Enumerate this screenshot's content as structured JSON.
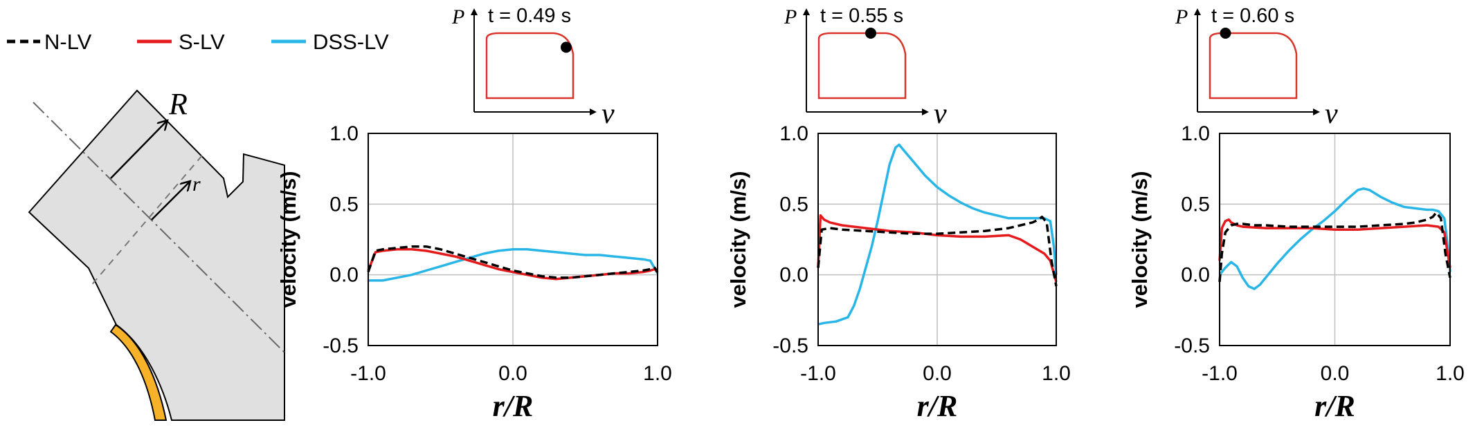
{
  "colors": {
    "N-LV": "#000000",
    "S-LV": "#e41a1c",
    "DSS-LV": "#29b6e6",
    "grid": "#bfbfbf",
    "tissue": "#e0e0e0",
    "leaflet": "#f7b22a",
    "loop": "#d9332b"
  },
  "legend": [
    {
      "label": "N-LV",
      "color": "#000000",
      "dash": true
    },
    {
      "label": "S-LV",
      "color": "#e41a1c",
      "dash": false
    },
    {
      "label": "DSS-LV",
      "color": "#29b6e6",
      "dash": false
    }
  ],
  "schematic": {
    "outer_label": "R",
    "inner_label": "r"
  },
  "pv_axes": {
    "ylabel": "P",
    "xlabel": "v"
  },
  "chart_data": [
    {
      "type": "line",
      "title": "t = 0.49 s",
      "time_label": "t = 0.49 s",
      "loop_marker": 0.92,
      "xlabel": "r/R",
      "ylabel": "velocity (m/s)",
      "xlim": [
        -1,
        1
      ],
      "ylim": [
        -0.5,
        1
      ],
      "xticks": [
        "-1.0",
        "0.0",
        "1.0"
      ],
      "yticks": [
        "1.0",
        "0.5",
        "0.0",
        "-0.5"
      ],
      "grid": true,
      "series": [
        {
          "name": "N-LV",
          "x": [
            -1,
            -0.95,
            -0.9,
            -0.8,
            -0.7,
            -0.6,
            -0.5,
            -0.4,
            -0.3,
            -0.2,
            -0.1,
            0,
            0.1,
            0.2,
            0.3,
            0.4,
            0.5,
            0.6,
            0.7,
            0.8,
            0.9,
            0.95,
            0.98,
            1
          ],
          "values": [
            0.02,
            0.17,
            0.18,
            0.19,
            0.2,
            0.2,
            0.18,
            0.15,
            0.12,
            0.09,
            0.06,
            0.03,
            0.01,
            -0.01,
            -0.02,
            -0.02,
            -0.01,
            0,
            0.01,
            0.02,
            0.03,
            0.04,
            0.05,
            0.02
          ]
        },
        {
          "name": "S-LV",
          "x": [
            -1,
            -0.95,
            -0.9,
            -0.8,
            -0.7,
            -0.6,
            -0.5,
            -0.4,
            -0.3,
            -0.2,
            -0.1,
            0,
            0.1,
            0.2,
            0.3,
            0.4,
            0.5,
            0.6,
            0.7,
            0.8,
            0.9,
            0.95,
            0.98,
            1
          ],
          "values": [
            0.03,
            0.16,
            0.17,
            0.18,
            0.18,
            0.17,
            0.15,
            0.13,
            0.1,
            0.07,
            0.04,
            0.02,
            0,
            -0.02,
            -0.03,
            -0.02,
            -0.01,
            0,
            0.01,
            0.01,
            0.02,
            0.03,
            0.04,
            0.02
          ]
        },
        {
          "name": "DSS-LV",
          "x": [
            -1,
            -0.9,
            -0.8,
            -0.7,
            -0.6,
            -0.5,
            -0.4,
            -0.3,
            -0.2,
            -0.1,
            0,
            0.1,
            0.2,
            0.3,
            0.4,
            0.5,
            0.6,
            0.7,
            0.8,
            0.9,
            0.95,
            1
          ],
          "values": [
            -0.04,
            -0.04,
            -0.02,
            0,
            0.03,
            0.06,
            0.09,
            0.12,
            0.15,
            0.17,
            0.18,
            0.18,
            0.17,
            0.16,
            0.15,
            0.14,
            0.14,
            0.13,
            0.12,
            0.11,
            0.1,
            0.01
          ]
        }
      ]
    },
    {
      "type": "line",
      "title": "t = 0.55 s",
      "time_label": "t = 0.55 s",
      "loop_marker": 0.6,
      "xlabel": "r/R",
      "ylabel": "velocity (m/s)",
      "xlim": [
        -1,
        1
      ],
      "ylim": [
        -0.5,
        1
      ],
      "xticks": [
        "-1.0",
        "0.0",
        "1.0"
      ],
      "yticks": [
        "1.0",
        "0.5",
        "0.0",
        "-0.5"
      ],
      "grid": true,
      "series": [
        {
          "name": "N-LV",
          "x": [
            -1,
            -0.97,
            -0.9,
            -0.8,
            -0.6,
            -0.4,
            -0.2,
            0,
            0.2,
            0.4,
            0.6,
            0.7,
            0.8,
            0.85,
            0.88,
            0.92,
            0.96,
            1
          ],
          "values": [
            0.05,
            0.32,
            0.33,
            0.32,
            0.31,
            0.3,
            0.29,
            0.29,
            0.3,
            0.31,
            0.33,
            0.35,
            0.37,
            0.39,
            0.41,
            0.37,
            0.1,
            -0.08
          ]
        },
        {
          "name": "S-LV",
          "x": [
            -1,
            -0.98,
            -0.95,
            -0.9,
            -0.8,
            -0.6,
            -0.4,
            -0.2,
            0,
            0.2,
            0.4,
            0.6,
            0.7,
            0.8,
            0.9,
            0.95,
            1
          ],
          "values": [
            0.05,
            0.42,
            0.39,
            0.37,
            0.35,
            0.33,
            0.31,
            0.3,
            0.28,
            0.27,
            0.27,
            0.28,
            0.25,
            0.2,
            0.15,
            0.1,
            -0.05
          ]
        },
        {
          "name": "DSS-LV",
          "x": [
            -1,
            -0.95,
            -0.85,
            -0.75,
            -0.7,
            -0.65,
            -0.6,
            -0.55,
            -0.5,
            -0.45,
            -0.4,
            -0.35,
            -0.32,
            -0.28,
            -0.2,
            -0.1,
            0,
            0.1,
            0.2,
            0.3,
            0.4,
            0.5,
            0.6,
            0.7,
            0.8,
            0.85,
            0.9,
            0.95,
            0.98,
            1
          ],
          "values": [
            -0.35,
            -0.34,
            -0.33,
            -0.3,
            -0.22,
            -0.1,
            0.05,
            0.2,
            0.38,
            0.58,
            0.78,
            0.9,
            0.92,
            0.88,
            0.8,
            0.7,
            0.62,
            0.56,
            0.51,
            0.47,
            0.44,
            0.42,
            0.4,
            0.4,
            0.4,
            0.4,
            0.4,
            0.38,
            0.2,
            0
          ]
        }
      ]
    },
    {
      "type": "line",
      "title": "t = 0.60 s",
      "time_label": "t = 0.60 s",
      "loop_marker": 0.18,
      "xlabel": "r/R",
      "ylabel": "velocity (m/s)",
      "xlim": [
        -1,
        1
      ],
      "ylim": [
        -0.5,
        1
      ],
      "xticks": [
        "-1.0",
        "0.0",
        "1.0"
      ],
      "yticks": [
        "1.0",
        "0.5",
        "0.0",
        "-0.5"
      ],
      "grid": true,
      "series": [
        {
          "name": "N-LV",
          "x": [
            -1,
            -0.98,
            -0.95,
            -0.9,
            -0.85,
            -0.8,
            -0.7,
            -0.6,
            -0.4,
            -0.2,
            0,
            0.2,
            0.4,
            0.6,
            0.7,
            0.8,
            0.85,
            0.88,
            0.92,
            0.96,
            1
          ],
          "values": [
            -0.05,
            0.15,
            0.3,
            0.35,
            0.36,
            0.36,
            0.35,
            0.35,
            0.34,
            0.34,
            0.34,
            0.34,
            0.35,
            0.36,
            0.37,
            0.39,
            0.41,
            0.44,
            0.4,
            0.15,
            -0.02
          ]
        },
        {
          "name": "S-LV",
          "x": [
            -1,
            -0.98,
            -0.95,
            -0.92,
            -0.9,
            -0.85,
            -0.8,
            -0.6,
            -0.4,
            -0.2,
            0,
            0.2,
            0.4,
            0.6,
            0.8,
            0.9,
            0.95,
            1
          ],
          "values": [
            0.1,
            0.33,
            0.38,
            0.39,
            0.37,
            0.35,
            0.34,
            0.33,
            0.33,
            0.33,
            0.32,
            0.32,
            0.33,
            0.34,
            0.35,
            0.34,
            0.3,
            0.05
          ]
        },
        {
          "name": "DSS-LV",
          "x": [
            -1,
            -0.95,
            -0.9,
            -0.85,
            -0.8,
            -0.75,
            -0.7,
            -0.65,
            -0.6,
            -0.5,
            -0.4,
            -0.3,
            -0.2,
            -0.1,
            0,
            0.1,
            0.2,
            0.25,
            0.3,
            0.4,
            0.5,
            0.6,
            0.7,
            0.8,
            0.85,
            0.9,
            0.95,
            0.98,
            1
          ],
          "values": [
            0,
            0.05,
            0.09,
            0.06,
            -0.02,
            -0.08,
            -0.1,
            -0.07,
            -0.02,
            0.08,
            0.17,
            0.25,
            0.32,
            0.38,
            0.45,
            0.53,
            0.6,
            0.61,
            0.6,
            0.55,
            0.51,
            0.48,
            0.47,
            0.46,
            0.46,
            0.45,
            0.4,
            0.2,
            0.02
          ]
        }
      ]
    }
  ]
}
